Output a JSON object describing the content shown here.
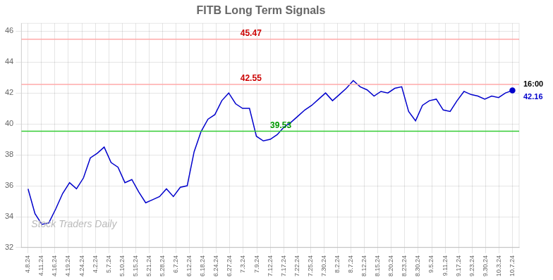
{
  "chart_data": {
    "type": "line",
    "title": "FITB Long Term Signals",
    "x": [
      0,
      0.5142857143,
      1.0285714286,
      1.5428571429,
      2.0571428571,
      2.5714285714,
      3.0857142857,
      3.6,
      4.1142857143,
      4.6285714286,
      5.1428571429,
      5.6571428571,
      6.1714285714,
      6.6857142857,
      7.2,
      7.7142857143,
      8.2285714286,
      8.7428571429,
      9.2571428571,
      9.7714285714,
      10.2857142857,
      10.8,
      11.3142857143,
      11.8285714286,
      12.3428571429,
      12.8571428571,
      13.3714285714,
      13.8857142857,
      14.4,
      14.9142857143,
      15.4285714286,
      15.9428571429,
      16.4571428571,
      16.9714285714,
      17.4857142857,
      18,
      18.5142857143,
      19.0285714286,
      19.5428571429,
      20.0571428571,
      20.5714285714,
      21.0857142857,
      21.6,
      22.1142857143,
      22.6285714286,
      23.1428571429,
      23.6571428571,
      24.1714285714,
      24.6857142857,
      25.2,
      25.7142857143,
      26.2285714286,
      26.7428571429,
      27.2571428571,
      27.7714285714,
      28.2857142857,
      28.8,
      29.3142857143,
      29.8285714286,
      30.3428571429,
      30.8571428571,
      31.3714285714,
      31.8857142857,
      32.4,
      32.9142857143,
      33.4285714286,
      33.9428571429,
      34.4571428571,
      34.9714285714,
      35.4857142857,
      36
    ],
    "series": [
      {
        "color": "#0000cc",
        "values": [
          35.8,
          34.2,
          33.5,
          33.6,
          34.5,
          35.5,
          36.2,
          35.8,
          36.5,
          37.8,
          38.1,
          38.5,
          37.5,
          37.2,
          36.2,
          36.4,
          35.6,
          34.9,
          35.1,
          35.3,
          35.8,
          35.3,
          35.9,
          36.0,
          38.2,
          39.5,
          40.3,
          40.6,
          41.5,
          42.0,
          41.3,
          41.0,
          41.0,
          39.2,
          38.9,
          39.0,
          39.3,
          39.8,
          40.1,
          40.5,
          40.9,
          41.2,
          41.6,
          42.0,
          41.5,
          41.9,
          42.3,
          42.8,
          42.4,
          42.2,
          41.8,
          42.1,
          42.0,
          42.3,
          42.4,
          40.8,
          40.2,
          41.2,
          41.5,
          41.6,
          40.9,
          40.8,
          41.5,
          42.1,
          41.9,
          41.8,
          41.6,
          41.8,
          41.7,
          42.0,
          42.16
        ]
      }
    ],
    "xlim": [
      -0.5,
      36.5
    ],
    "xticks": [
      {
        "value": 0,
        "label": "4.8.24"
      },
      {
        "value": 1,
        "label": "4.11.24"
      },
      {
        "value": 2,
        "label": "4.16.24"
      },
      {
        "value": 3,
        "label": "4.19.24"
      },
      {
        "value": 4,
        "label": "4.24.24"
      },
      {
        "value": 5,
        "label": "4.2.24"
      },
      {
        "value": 6,
        "label": "5.7.24"
      },
      {
        "value": 7,
        "label": "5.10.24"
      },
      {
        "value": 8,
        "label": "5.15.24"
      },
      {
        "value": 9,
        "label": "5.21.24"
      },
      {
        "value": 10,
        "label": "5.28.24"
      },
      {
        "value": 11,
        "label": "6.7.24"
      },
      {
        "value": 12,
        "label": "6.12.24"
      },
      {
        "value": 13,
        "label": "6.18.24"
      },
      {
        "value": 14,
        "label": "6.24.24"
      },
      {
        "value": 15,
        "label": "6.27.24"
      },
      {
        "value": 16,
        "label": "7.3.24"
      },
      {
        "value": 17,
        "label": "7.9.24"
      },
      {
        "value": 18,
        "label": "7.12.24"
      },
      {
        "value": 19,
        "label": "7.17.24"
      },
      {
        "value": 20,
        "label": "7.22.24"
      },
      {
        "value": 21,
        "label": "7.25.24"
      },
      {
        "value": 22,
        "label": "7.30.24"
      },
      {
        "value": 23,
        "label": "8.2.24"
      },
      {
        "value": 24,
        "label": "8.7.24"
      },
      {
        "value": 25,
        "label": "8.12.24"
      },
      {
        "value": 26,
        "label": "8.15.24"
      },
      {
        "value": 27,
        "label": "8.20.24"
      },
      {
        "value": 28,
        "label": "8.23.24"
      },
      {
        "value": 29,
        "label": "8.30.24"
      },
      {
        "value": 30,
        "label": "9.5.24"
      },
      {
        "value": 31,
        "label": "9.11.24"
      },
      {
        "value": 32,
        "label": "9.17.24"
      },
      {
        "value": 33,
        "label": "9.23.24"
      },
      {
        "value": 34,
        "label": "9.30.24"
      },
      {
        "value": 35,
        "label": "10.3.24"
      },
      {
        "value": 36,
        "label": "10.7.24"
      }
    ],
    "ylim": [
      32,
      46.5
    ],
    "yticks": [
      32,
      34,
      36,
      38,
      40,
      42,
      44,
      46
    ],
    "grid": true,
    "hlines": [
      {
        "value": 39.53,
        "color": "#33cc33",
        "label": "39.53",
        "label_color": "#009900"
      },
      {
        "value": 42.55,
        "color": "#ffaaaa",
        "label": "42.55",
        "label_color": "#cc0000"
      },
      {
        "value": 45.47,
        "color": "#ffaaaa",
        "label": "45.47",
        "label_color": "#cc0000"
      }
    ],
    "annotations": [
      {
        "text": "16:00",
        "color": "#000000"
      },
      {
        "text": "42.16",
        "color": "#0000cc"
      }
    ],
    "watermark": {
      "text": "Stock Traders Daily",
      "color": "#bbbbbb"
    }
  }
}
